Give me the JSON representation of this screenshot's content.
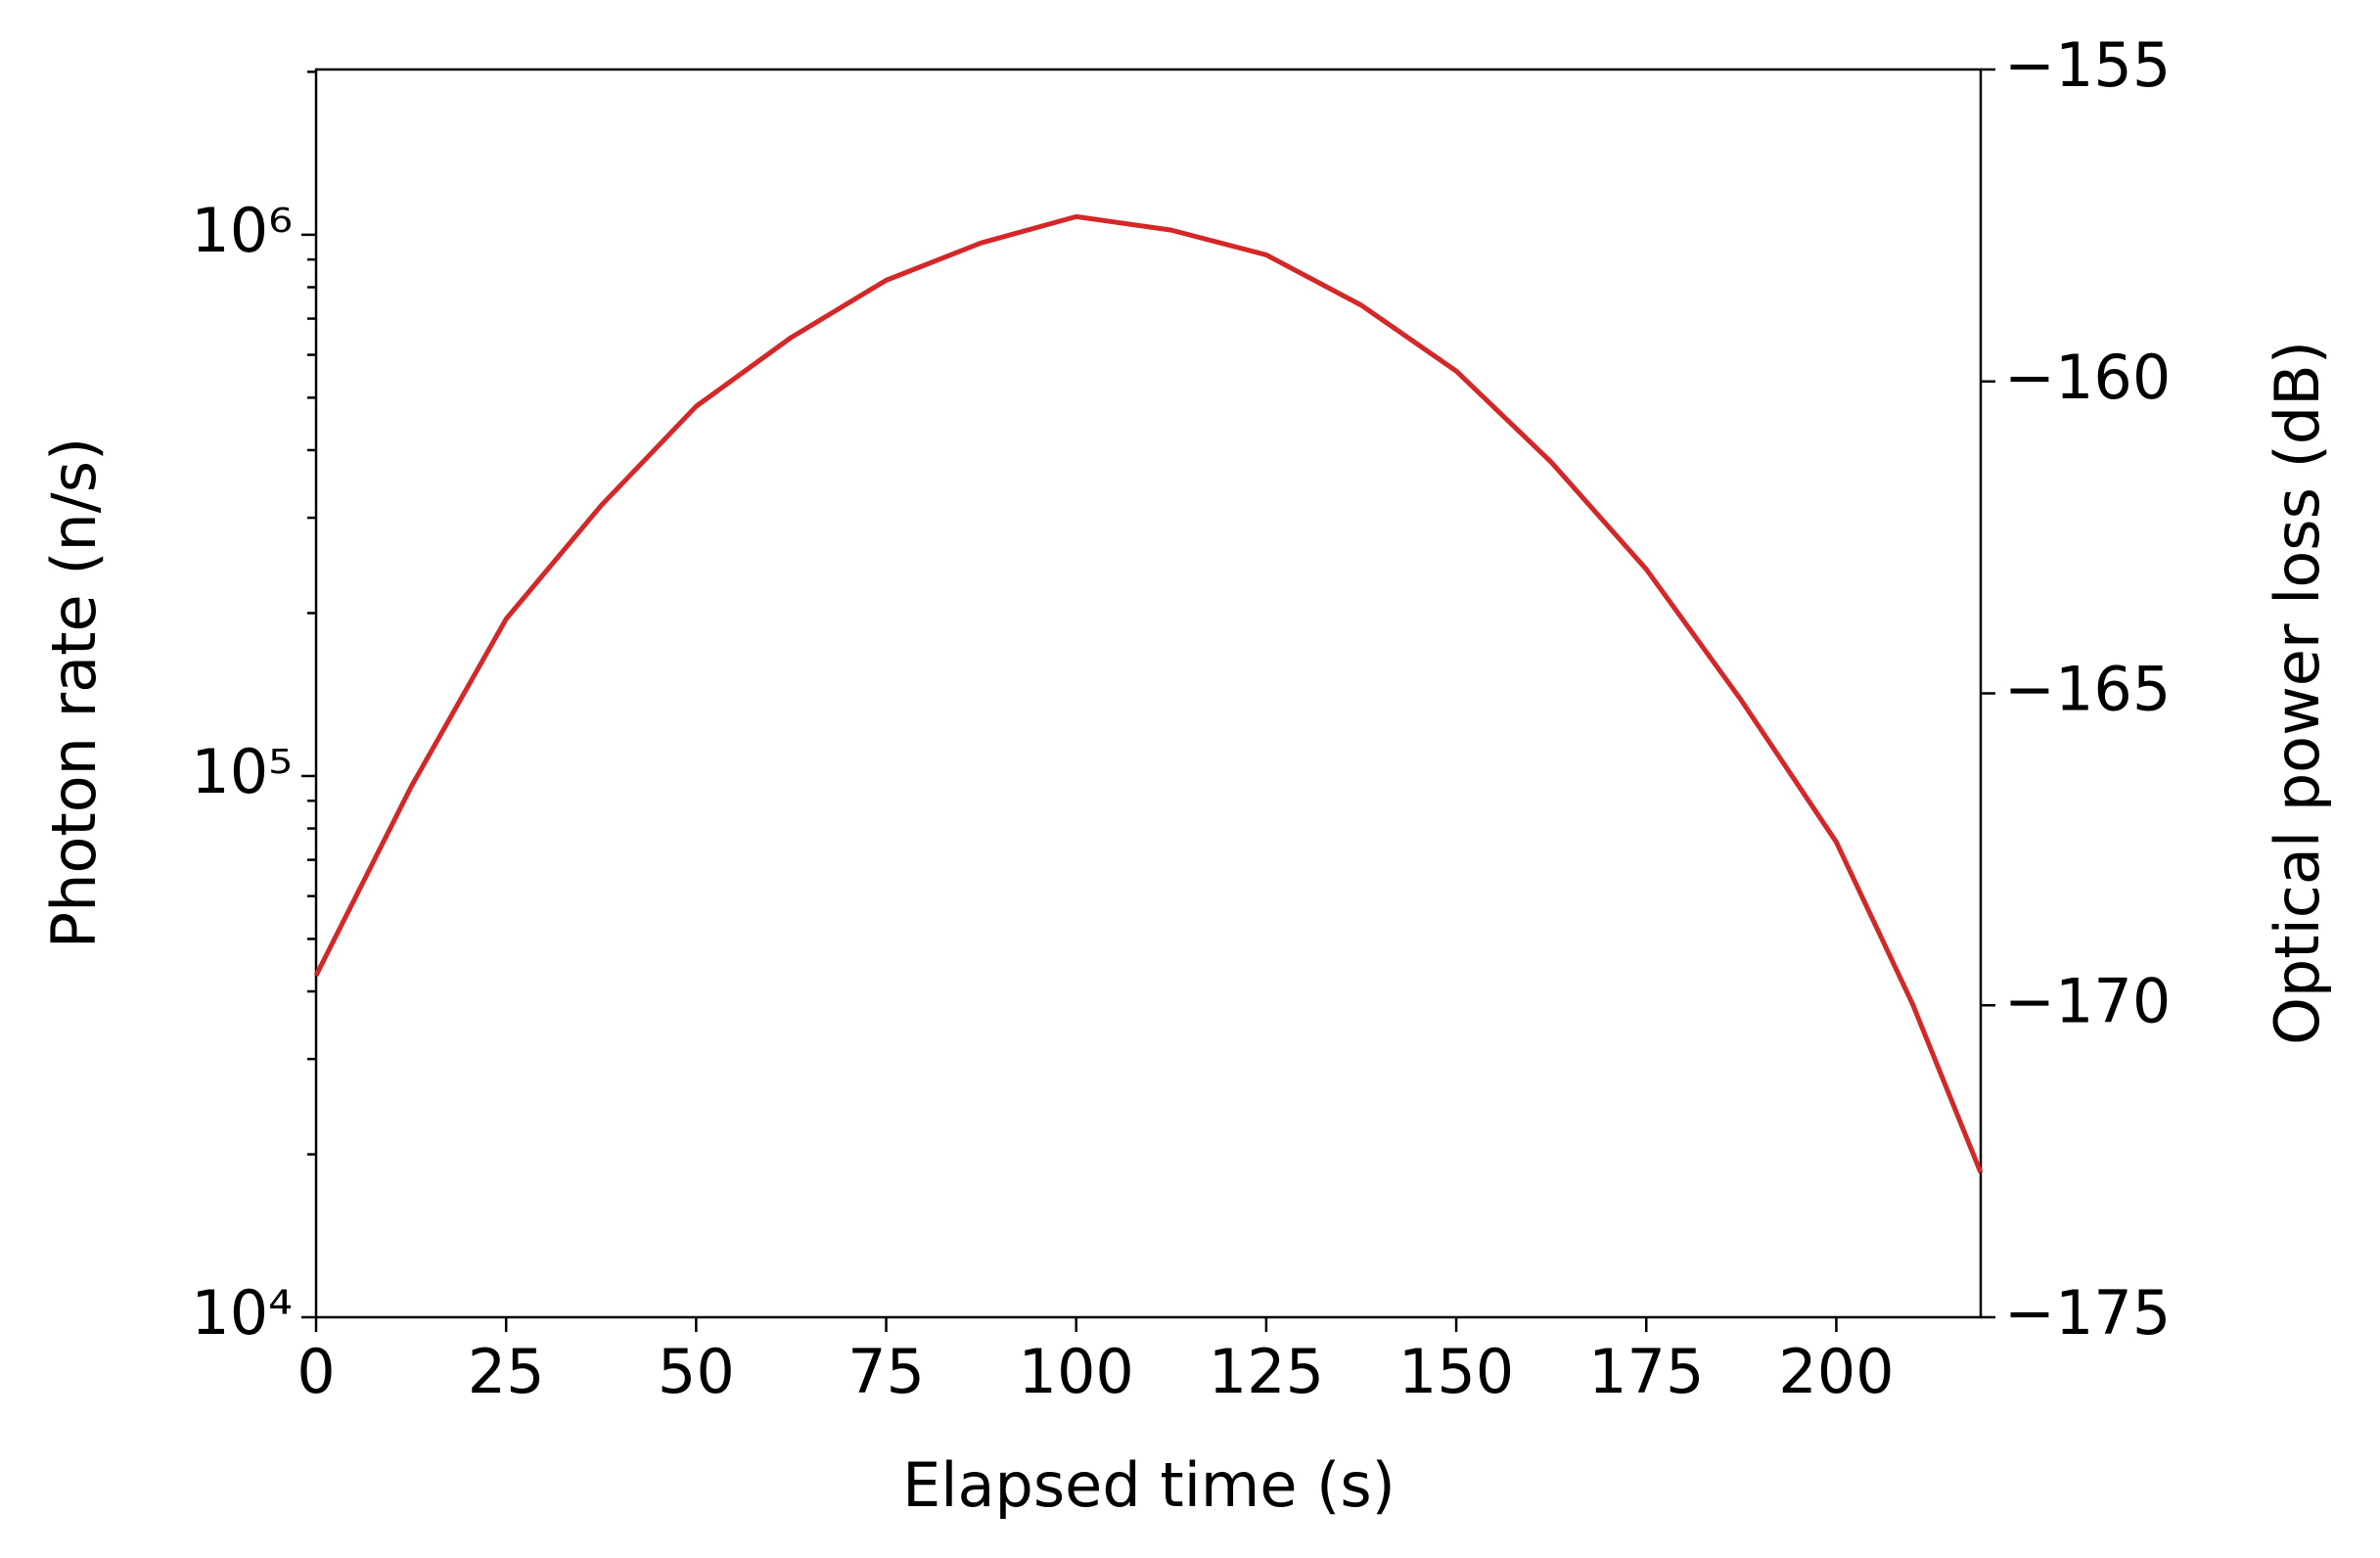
{
  "chart_data": {
    "type": "line",
    "xlabel": "Elapsed time (s)",
    "ylabel": "Photon rate (n/s)",
    "y2label": "Optical power loss (dB)",
    "x": [
      0,
      12.5,
      25,
      37.5,
      50,
      62.5,
      75,
      87.5,
      100,
      112.5,
      125,
      137.5,
      150,
      162.5,
      175,
      187.5,
      200,
      210,
      219
    ],
    "series": [
      {
        "name": "Photon rate",
        "color": "#d62728",
        "values": [
          42800,
          95500,
          195000,
          316000,
          482000,
          646000,
          824000,
          966000,
          1080000,
          1020000,
          918000,
          741000,
          560000,
          380000,
          241000,
          138000,
          75500,
          38000,
          18500
        ]
      }
    ],
    "xlim": [
      0,
      219
    ],
    "xticks": [
      0,
      25,
      50,
      75,
      100,
      125,
      150,
      175,
      200
    ],
    "ylim": [
      10000,
      2020000
    ],
    "ylog": true,
    "yticks": [
      {
        "value": 10000,
        "label": "10⁴"
      },
      {
        "value": 100000,
        "label": "10⁵"
      },
      {
        "value": 1000000,
        "label": "10⁶"
      }
    ],
    "yminorticks": [
      20000,
      30000,
      40000,
      50000,
      60000,
      70000,
      80000,
      90000,
      200000,
      300000,
      400000,
      500000,
      600000,
      700000,
      800000,
      900000,
      2000000
    ],
    "y2lim": [
      -175,
      -155
    ],
    "y2ticks": [
      {
        "value": -175,
        "label": "−175"
      },
      {
        "value": -170,
        "label": "−170"
      },
      {
        "value": -165,
        "label": "−165"
      },
      {
        "value": -160,
        "label": "−160"
      },
      {
        "value": -155,
        "label": "−155"
      }
    ],
    "grid": false
  }
}
